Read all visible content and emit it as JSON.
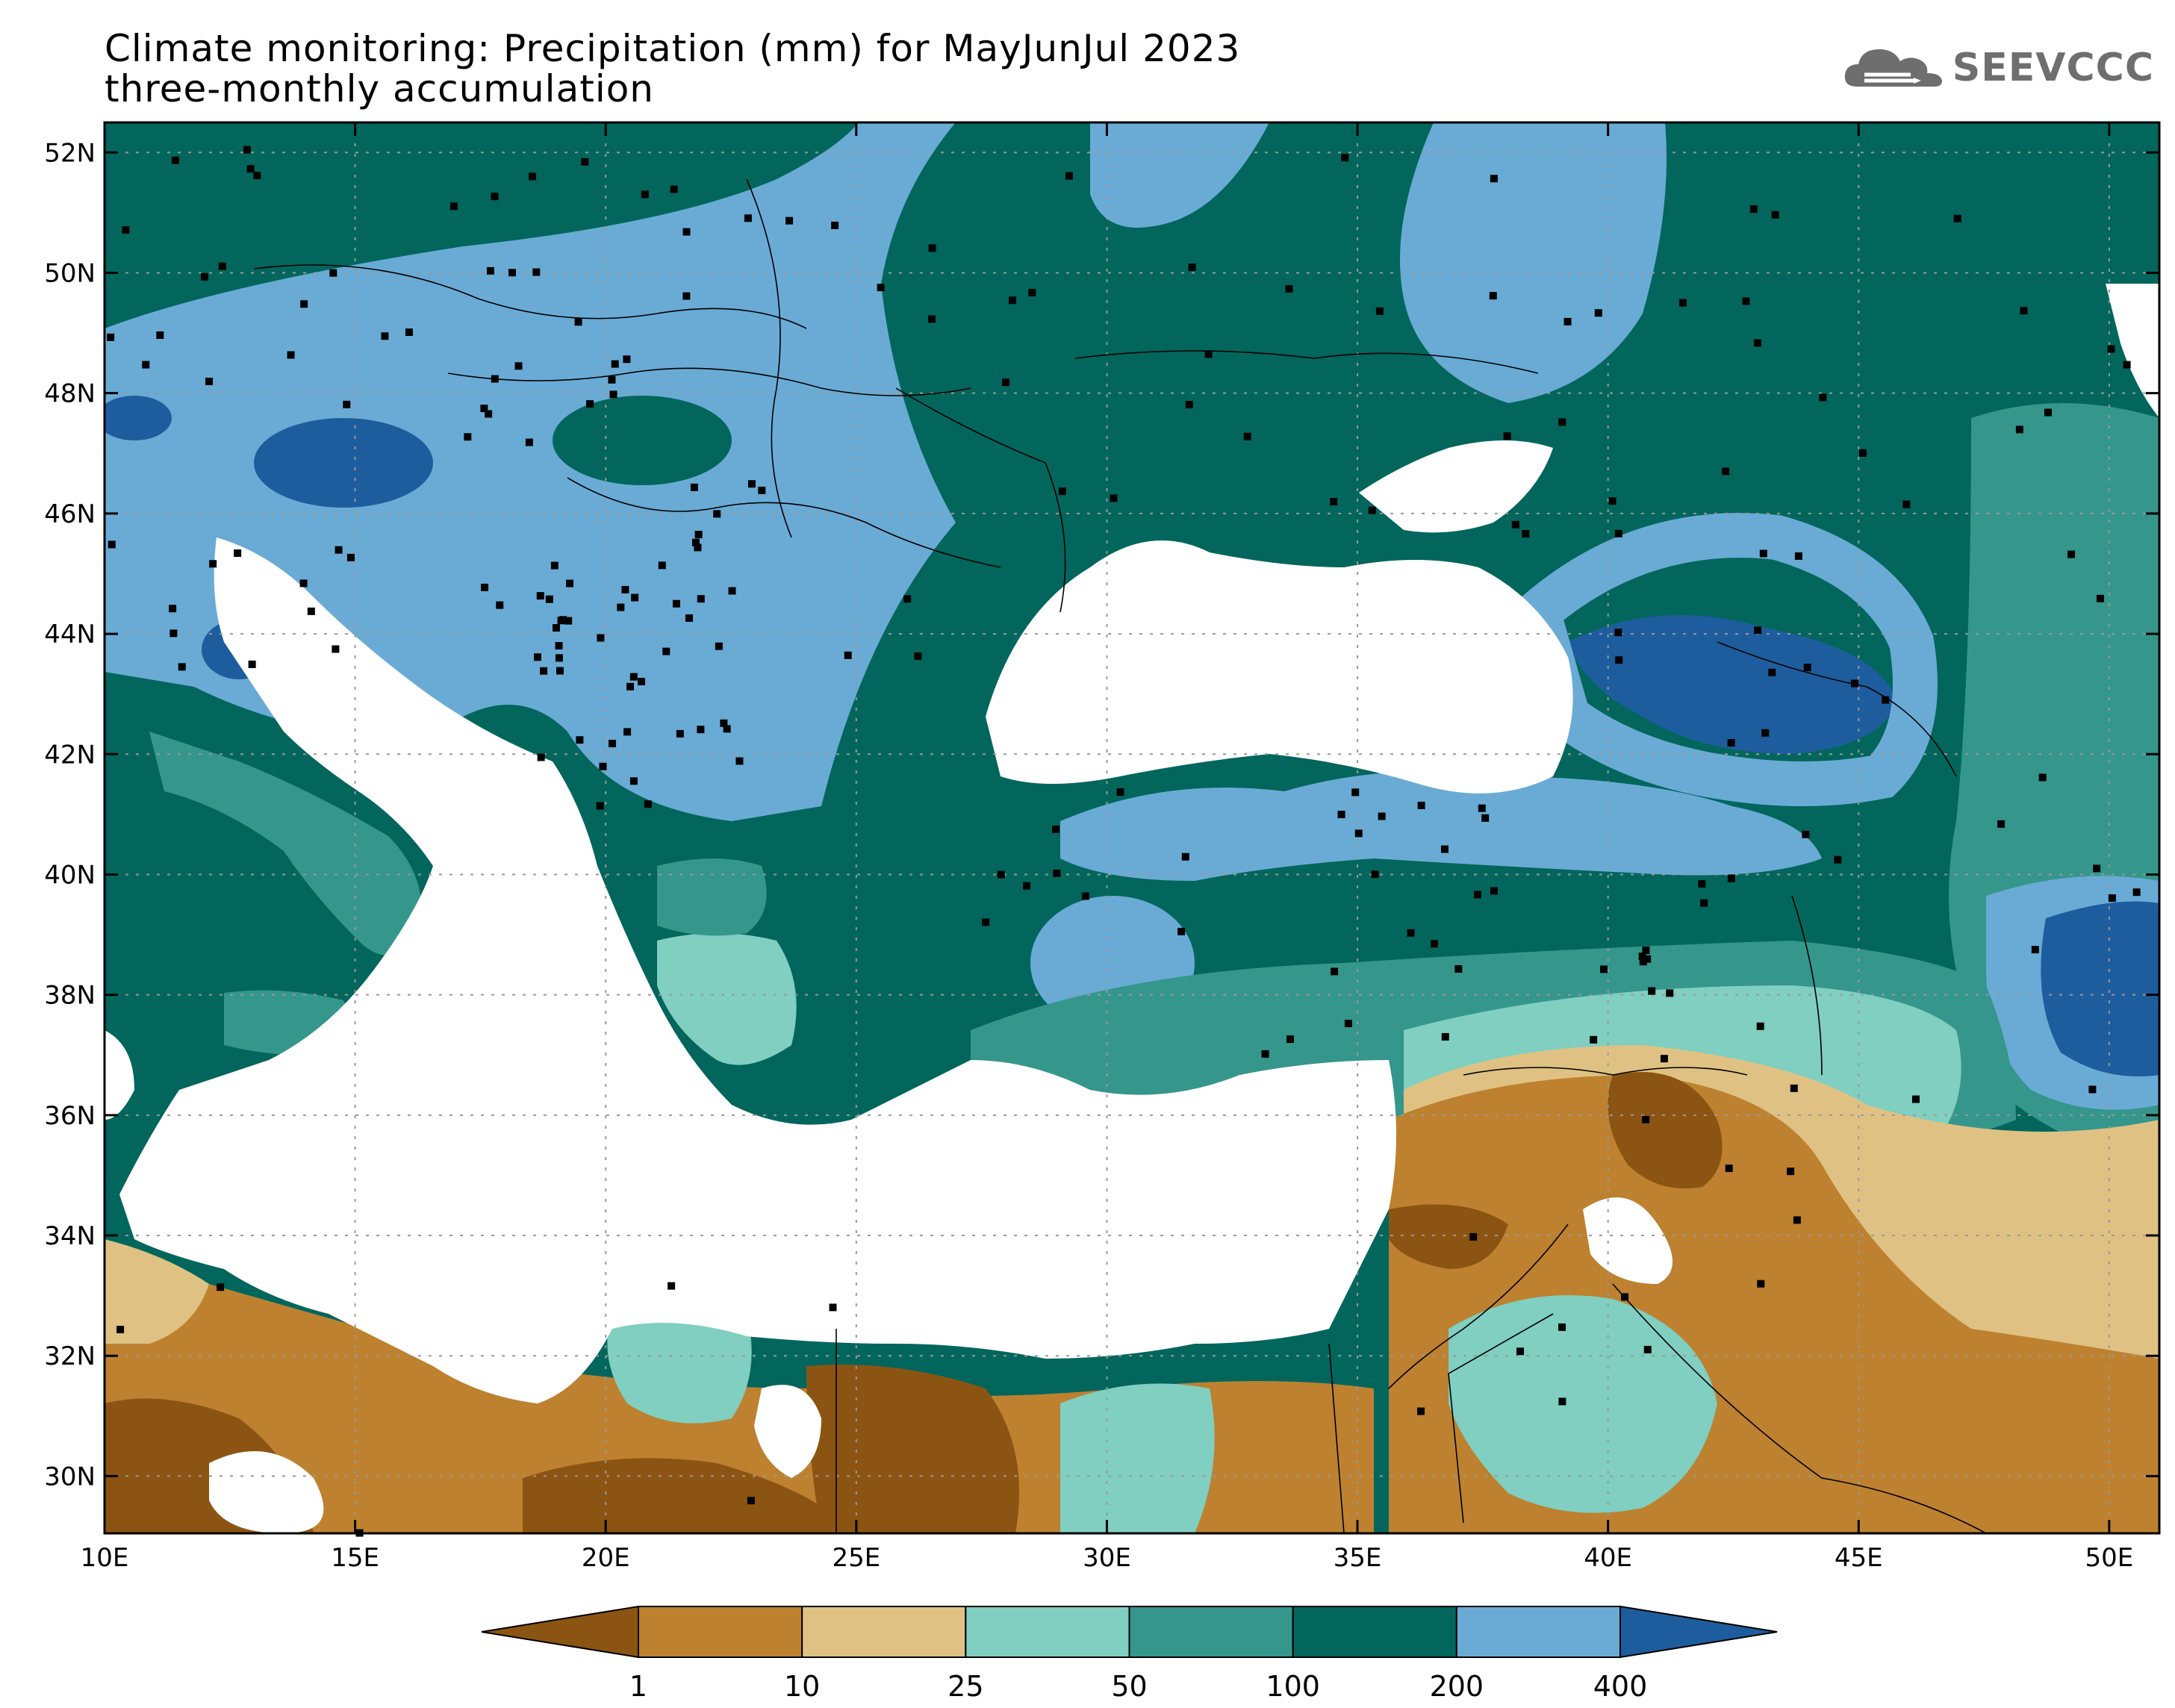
{
  "title": {
    "line1": "Climate monitoring: Precipitation (mm) for MayJunJul 2023",
    "line2": "three-monthly accumulation"
  },
  "logo": {
    "text": "SEEVCCC",
    "icon": "cloud-icon"
  },
  "map": {
    "lon_labels": [
      "10E",
      "15E",
      "20E",
      "25E",
      "30E",
      "35E",
      "40E",
      "45E",
      "50E"
    ],
    "lat_labels": [
      "52N",
      "50N",
      "48N",
      "46N",
      "44N",
      "42N",
      "40N",
      "38N",
      "36N",
      "34N",
      "32N",
      "30N"
    ]
  },
  "colorbar": {
    "boundaries": [
      "1",
      "10",
      "25",
      "50",
      "100",
      "200",
      "400"
    ],
    "colors": [
      "#8c5412",
      "#bd8130",
      "#dfc283",
      "#80cfc1",
      "#35968c",
      "#02665c",
      "#6aabd6",
      "#1d5d9e"
    ]
  },
  "palette": {
    "very_dry": "#8c5412",
    "dry": "#bd8130",
    "light_dry": "#dfc283",
    "light_teal": "#80cfc1",
    "teal": "#35968c",
    "dark_teal": "#02665c",
    "light_blue": "#6aabd6",
    "dark_blue": "#1d5d9e",
    "sea": "#ffffff"
  }
}
